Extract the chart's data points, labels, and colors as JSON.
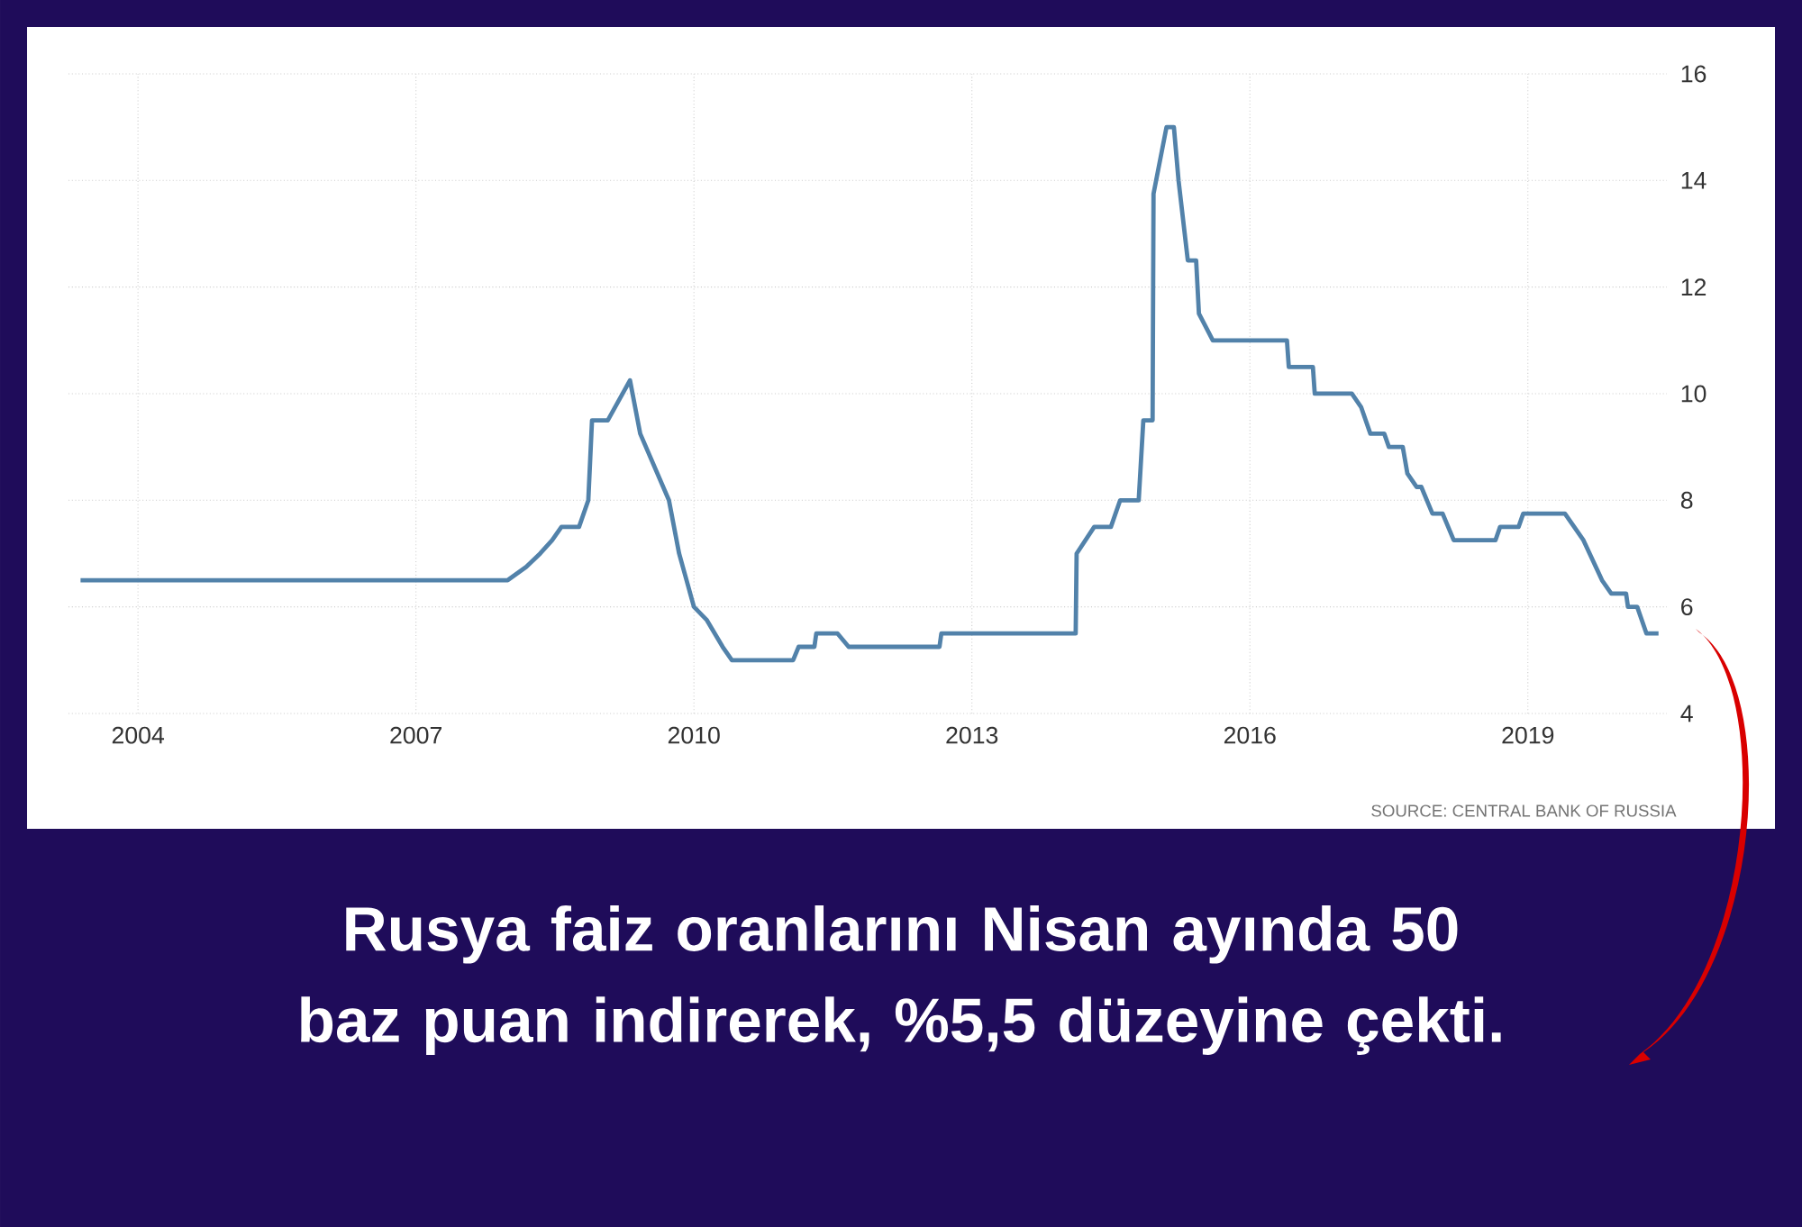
{
  "chart_data": {
    "type": "line",
    "title": "Rusya faiz oranlarını Nisan ayında 50 baz puan indirerek, %5,5 düzeyine çekti.",
    "annotations": [
      "SOURCE: CENTRAL BANK OF RUSSIA"
    ],
    "x": [
      2003.38,
      2007.99,
      2008.19,
      2008.34,
      2008.47,
      2008.57,
      2008.76,
      2008.86,
      2008.9,
      2009.07,
      2009.31,
      2009.42,
      2009.73,
      2009.84,
      2010.0,
      2010.14,
      2010.31,
      2010.41,
      2011.07,
      2011.13,
      2011.3,
      2011.32,
      2011.55,
      2011.67,
      2012.65,
      2012.67,
      2014.12,
      2014.13,
      2014.32,
      2014.5,
      2014.6,
      2014.8,
      2014.85,
      2014.95,
      2014.96,
      2015.1,
      2015.18,
      2015.23,
      2015.33,
      2015.42,
      2015.45,
      2015.6,
      2016.4,
      2016.42,
      2016.68,
      2016.7,
      2017.1,
      2017.2,
      2017.3,
      2017.45,
      2017.5,
      2017.65,
      2017.7,
      2017.8,
      2017.85,
      2017.97,
      2018.08,
      2018.2,
      2018.65,
      2018.7,
      2018.9,
      2018.95,
      2019.4,
      2019.5,
      2019.6,
      2019.8,
      2019.9,
      2020.06,
      2020.08,
      2020.18,
      2020.28,
      2020.41
    ],
    "values": [
      6.5,
      6.5,
      6.75,
      7,
      7.25,
      7.5,
      7.5,
      8,
      9.5,
      9.5,
      10.25,
      9.25,
      8,
      7,
      6,
      5.75,
      5.25,
      5,
      5,
      5.25,
      5.25,
      5.5,
      5.5,
      5.25,
      5.25,
      5.5,
      5.5,
      7,
      7.5,
      7.5,
      8,
      8,
      9.5,
      9.5,
      13.75,
      15,
      15,
      14,
      12.5,
      12.5,
      11.5,
      11,
      11,
      10.5,
      10.5,
      10,
      10,
      9.75,
      9.25,
      9.25,
      9,
      9,
      8.5,
      8.25,
      8.25,
      7.75,
      7.75,
      7.25,
      7.25,
      7.5,
      7.5,
      7.75,
      7.75,
      7.5,
      7.25,
      6.5,
      6.25,
      6.25,
      6,
      6,
      5.5,
      5.5
    ],
    "color": "#5282aa",
    "xlim": [
      2003.25,
      2020.5
    ],
    "ylim": [
      4,
      16
    ],
    "xticks": [
      2004,
      2007,
      2010,
      2013,
      2016,
      2019
    ],
    "yticks": [
      4,
      6,
      8,
      10,
      12,
      14,
      16
    ],
    "grid": true
  }
}
